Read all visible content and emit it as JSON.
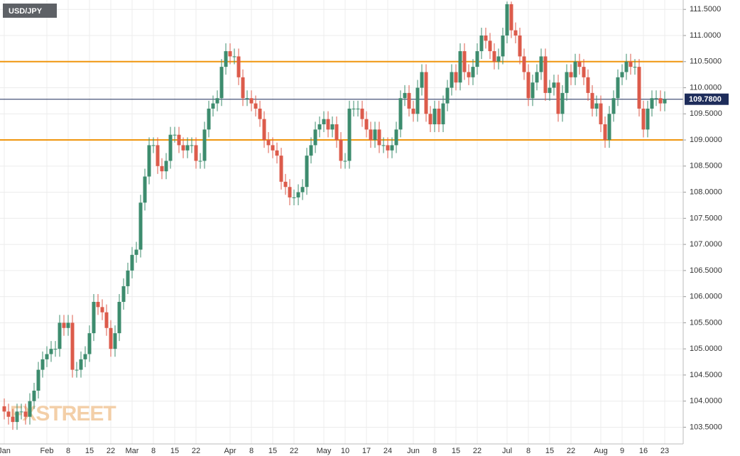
{
  "chart_data": {
    "type": "candlestick",
    "title": "USD/JPY",
    "watermark": "FXSTREET",
    "up_color": "#3d8c6e",
    "down_color": "#dc5b4b",
    "grid": true,
    "categories": [
      "Jan",
      null,
      null,
      null,
      null,
      null,
      null,
      null,
      null,
      null,
      "Feb",
      null,
      null,
      null,
      null,
      "8",
      null,
      null,
      null,
      null,
      "15",
      null,
      null,
      null,
      null,
      "22",
      null,
      null,
      null,
      null,
      "Mar",
      null,
      null,
      null,
      null,
      "8",
      null,
      null,
      null,
      null,
      "15",
      null,
      null,
      null,
      null,
      "22",
      null,
      null,
      null,
      null,
      null,
      null,
      null,
      "Apr",
      null,
      null,
      null,
      null,
      "8",
      null,
      null,
      null,
      null,
      "15",
      null,
      null,
      null,
      null,
      "22",
      null,
      null,
      null,
      null,
      null,
      null,
      "May",
      null,
      null,
      null,
      null,
      "10",
      null,
      null,
      null,
      null,
      "17",
      null,
      null,
      null,
      null,
      "24",
      null,
      null,
      null,
      null,
      null,
      "Jun",
      null,
      null,
      null,
      null,
      "8",
      null,
      null,
      null,
      null,
      "15",
      null,
      null,
      null,
      null,
      "22",
      null,
      null,
      null,
      null,
      null,
      null,
      "Jul",
      null,
      null,
      null,
      null,
      "8",
      null,
      null,
      null,
      null,
      "15",
      null,
      null,
      null,
      null,
      "22",
      null,
      null,
      null,
      null,
      null,
      null,
      "Aug",
      null,
      null,
      null,
      null,
      "9",
      null,
      null,
      null,
      null,
      "16",
      null,
      null,
      null,
      null,
      "23"
    ],
    "open": [
      103.9,
      103.8,
      103.7,
      103.6,
      103.8,
      103.8,
      103.7,
      104.0,
      104.2,
      104.6,
      104.8,
      104.9,
      105.0,
      105.0,
      105.5,
      105.4,
      105.5,
      104.6,
      104.6,
      104.8,
      104.9,
      105.3,
      105.9,
      105.8,
      105.7,
      105.4,
      105.0,
      105.3,
      105.9,
      106.2,
      106.5,
      106.8,
      106.9,
      107.8,
      108.3,
      108.9,
      108.9,
      108.5,
      108.4,
      108.6,
      109.1,
      109.1,
      108.9,
      108.8,
      108.9,
      108.9,
      108.6,
      108.6,
      109.2,
      109.6,
      109.7,
      109.8,
      110.4,
      110.7,
      110.6,
      110.6,
      110.2,
      109.8,
      109.8,
      109.7,
      109.6,
      109.4,
      109.0,
      108.9,
      108.8,
      108.7,
      108.2,
      108.1,
      107.9,
      107.9,
      108.0,
      108.1,
      108.7,
      108.9,
      109.2,
      109.3,
      109.4,
      109.2,
      109.3,
      109.0,
      108.6,
      108.6,
      109.6,
      109.6,
      109.6,
      109.4,
      109.2,
      109.0,
      109.2,
      108.9,
      108.9,
      108.8,
      108.9,
      109.2,
      109.8,
      109.9,
      109.6,
      109.5,
      110.0,
      110.3,
      109.5,
      109.3,
      109.6,
      109.3,
      109.7,
      110.0,
      110.3,
      110.1,
      110.7,
      110.3,
      110.2,
      110.4,
      110.7,
      111.0,
      110.9,
      110.7,
      110.5,
      110.6,
      111.0,
      111.6,
      111.1,
      111.0,
      110.6,
      110.3,
      109.8,
      110.1,
      110.3,
      110.6,
      109.9,
      110.0,
      110.1,
      109.5,
      109.9,
      110.3,
      110.2,
      110.5,
      110.4,
      110.2,
      109.9,
      109.6,
      109.7,
      109.3,
      109.0,
      109.5,
      109.8,
      110.2,
      110.3,
      110.5,
      110.4,
      110.4,
      109.6,
      109.2,
      109.6,
      109.8,
      109.8,
      109.7
    ],
    "high": [
      104.05,
      103.95,
      103.85,
      103.95,
      103.95,
      103.95,
      104.15,
      104.35,
      104.75,
      104.95,
      105.05,
      105.15,
      105.15,
      105.65,
      105.65,
      105.65,
      105.65,
      104.75,
      104.95,
      105.05,
      105.45,
      106.05,
      106.05,
      105.95,
      105.85,
      105.55,
      105.45,
      106.05,
      106.35,
      106.65,
      106.95,
      107.05,
      107.95,
      108.45,
      109.05,
      109.05,
      109.05,
      108.65,
      108.75,
      109.25,
      109.25,
      109.25,
      109.05,
      109.05,
      109.05,
      109.05,
      108.75,
      109.35,
      109.75,
      109.85,
      109.95,
      110.55,
      110.85,
      110.85,
      110.75,
      110.75,
      110.35,
      109.95,
      109.95,
      109.85,
      109.75,
      109.55,
      109.15,
      109.05,
      108.95,
      108.85,
      108.35,
      108.25,
      108.05,
      108.15,
      108.25,
      108.85,
      109.05,
      109.35,
      109.45,
      109.55,
      109.55,
      109.45,
      109.45,
      109.15,
      108.75,
      109.75,
      109.75,
      109.75,
      109.75,
      109.55,
      109.35,
      109.35,
      109.35,
      109.05,
      109.05,
      109.05,
      109.35,
      109.95,
      110.05,
      110.05,
      109.75,
      110.15,
      110.45,
      110.45,
      109.65,
      109.75,
      109.75,
      109.85,
      110.15,
      110.45,
      110.45,
      110.85,
      110.85,
      110.45,
      110.55,
      110.85,
      111.15,
      111.15,
      111.05,
      110.85,
      110.75,
      111.15,
      111.65,
      111.65,
      111.25,
      111.15,
      110.75,
      110.45,
      110.25,
      110.45,
      110.75,
      110.75,
      110.15,
      110.25,
      110.25,
      110.05,
      110.45,
      110.45,
      110.65,
      110.65,
      110.55,
      110.35,
      110.05,
      109.85,
      109.85,
      109.45,
      109.65,
      109.95,
      110.35,
      110.45,
      110.65,
      110.65,
      110.55,
      110.55,
      109.75,
      109.75,
      109.95,
      109.95,
      109.95,
      109.93
    ],
    "low": [
      103.65,
      103.55,
      103.45,
      103.45,
      103.65,
      103.55,
      103.55,
      103.85,
      104.05,
      104.45,
      104.65,
      104.75,
      104.85,
      104.85,
      105.25,
      105.25,
      104.45,
      104.45,
      104.45,
      104.65,
      104.75,
      105.15,
      105.65,
      105.55,
      105.25,
      104.85,
      104.85,
      105.15,
      105.75,
      106.05,
      106.35,
      106.65,
      106.75,
      107.65,
      108.15,
      108.75,
      108.35,
      108.25,
      108.25,
      108.45,
      108.95,
      108.75,
      108.65,
      108.65,
      108.75,
      108.45,
      108.45,
      108.45,
      109.05,
      109.45,
      109.55,
      109.65,
      110.25,
      110.45,
      110.45,
      110.05,
      109.65,
      109.65,
      109.55,
      109.45,
      109.25,
      108.85,
      108.75,
      108.65,
      108.55,
      108.05,
      107.95,
      107.75,
      107.75,
      107.75,
      107.85,
      107.95,
      108.55,
      108.75,
      109.05,
      109.15,
      109.05,
      109.05,
      108.85,
      108.45,
      108.45,
      108.45,
      109.45,
      109.45,
      109.25,
      109.05,
      108.85,
      108.85,
      108.75,
      108.75,
      108.65,
      108.65,
      108.75,
      109.05,
      109.65,
      109.45,
      109.35,
      109.35,
      109.85,
      109.35,
      109.15,
      109.15,
      109.15,
      109.15,
      109.55,
      109.85,
      109.95,
      109.95,
      110.15,
      110.05,
      110.05,
      110.25,
      110.55,
      110.75,
      110.55,
      110.35,
      110.35,
      110.45,
      110.85,
      110.95,
      110.85,
      110.45,
      110.15,
      109.65,
      109.65,
      109.95,
      110.15,
      109.75,
      109.75,
      109.85,
      109.35,
      109.35,
      109.75,
      110.05,
      110.05,
      110.25,
      110.05,
      109.75,
      109.45,
      109.45,
      109.15,
      108.85,
      108.85,
      109.35,
      109.65,
      110.05,
      110.15,
      110.25,
      110.25,
      109.45,
      109.05,
      109.05,
      109.45,
      109.65,
      109.55,
      109.55
    ],
    "close": [
      103.8,
      103.7,
      103.6,
      103.8,
      103.8,
      103.7,
      104.0,
      104.2,
      104.6,
      104.8,
      104.9,
      105.0,
      105.0,
      105.5,
      105.4,
      105.5,
      104.6,
      104.6,
      104.8,
      104.9,
      105.3,
      105.9,
      105.8,
      105.7,
      105.4,
      105.0,
      105.3,
      105.9,
      106.2,
      106.5,
      106.8,
      106.9,
      107.8,
      108.3,
      108.9,
      108.9,
      108.5,
      108.4,
      108.6,
      109.1,
      109.1,
      108.9,
      108.8,
      108.9,
      108.9,
      108.6,
      108.6,
      109.2,
      109.6,
      109.7,
      109.8,
      110.4,
      110.7,
      110.6,
      110.6,
      110.2,
      109.8,
      109.8,
      109.7,
      109.6,
      109.4,
      109.0,
      108.9,
      108.8,
      108.7,
      108.2,
      108.1,
      107.9,
      107.9,
      108.0,
      108.1,
      108.7,
      108.9,
      109.2,
      109.3,
      109.4,
      109.2,
      109.3,
      109.0,
      108.6,
      108.6,
      109.6,
      109.6,
      109.6,
      109.4,
      109.2,
      109.0,
      109.2,
      108.9,
      108.9,
      108.8,
      108.9,
      109.2,
      109.8,
      109.9,
      109.6,
      109.5,
      110.0,
      110.3,
      109.5,
      109.3,
      109.6,
      109.3,
      109.7,
      110.0,
      110.3,
      110.1,
      110.7,
      110.3,
      110.2,
      110.4,
      110.7,
      111.0,
      110.9,
      110.7,
      110.5,
      110.6,
      111.0,
      111.6,
      111.1,
      111.0,
      110.6,
      110.3,
      109.8,
      110.1,
      110.3,
      110.6,
      109.9,
      110.0,
      110.1,
      109.5,
      109.9,
      110.3,
      110.2,
      110.5,
      110.4,
      110.2,
      109.9,
      109.6,
      109.7,
      109.3,
      109.0,
      109.5,
      109.8,
      110.2,
      110.3,
      110.5,
      110.4,
      110.4,
      109.6,
      109.2,
      109.6,
      109.8,
      109.8,
      109.7,
      109.78
    ],
    "ylim": [
      103.18,
      111.68
    ],
    "yticks": [
      {
        "value": 103.5,
        "label": "103.5000"
      },
      {
        "value": 104,
        "label": "104.0000"
      },
      {
        "value": 104.5,
        "label": "104.5000"
      },
      {
        "value": 105,
        "label": "105.0000"
      },
      {
        "value": 105.5,
        "label": "105.5000"
      },
      {
        "value": 106,
        "label": "106.0000"
      },
      {
        "value": 106.5,
        "label": "106.5000"
      },
      {
        "value": 107,
        "label": "107.0000"
      },
      {
        "value": 107.5,
        "label": "107.5000"
      },
      {
        "value": 108,
        "label": "108.0000"
      },
      {
        "value": 108.5,
        "label": "108.5000"
      },
      {
        "value": 109,
        "label": "109.0000"
      },
      {
        "value": 109.5,
        "label": "109.5000"
      },
      {
        "value": 110,
        "label": "110.0000"
      },
      {
        "value": 110.5,
        "label": "110.5000"
      },
      {
        "value": 111,
        "label": "111.0000"
      },
      {
        "value": 111.5,
        "label": "111.5000"
      }
    ],
    "hlines": [
      {
        "value": 110.5,
        "color": "#f0960e"
      },
      {
        "value": 109.0,
        "color": "#f0960e"
      }
    ],
    "last_price": {
      "value": 109.78,
      "label": "109.7800",
      "color": "#1d2c5a"
    }
  }
}
